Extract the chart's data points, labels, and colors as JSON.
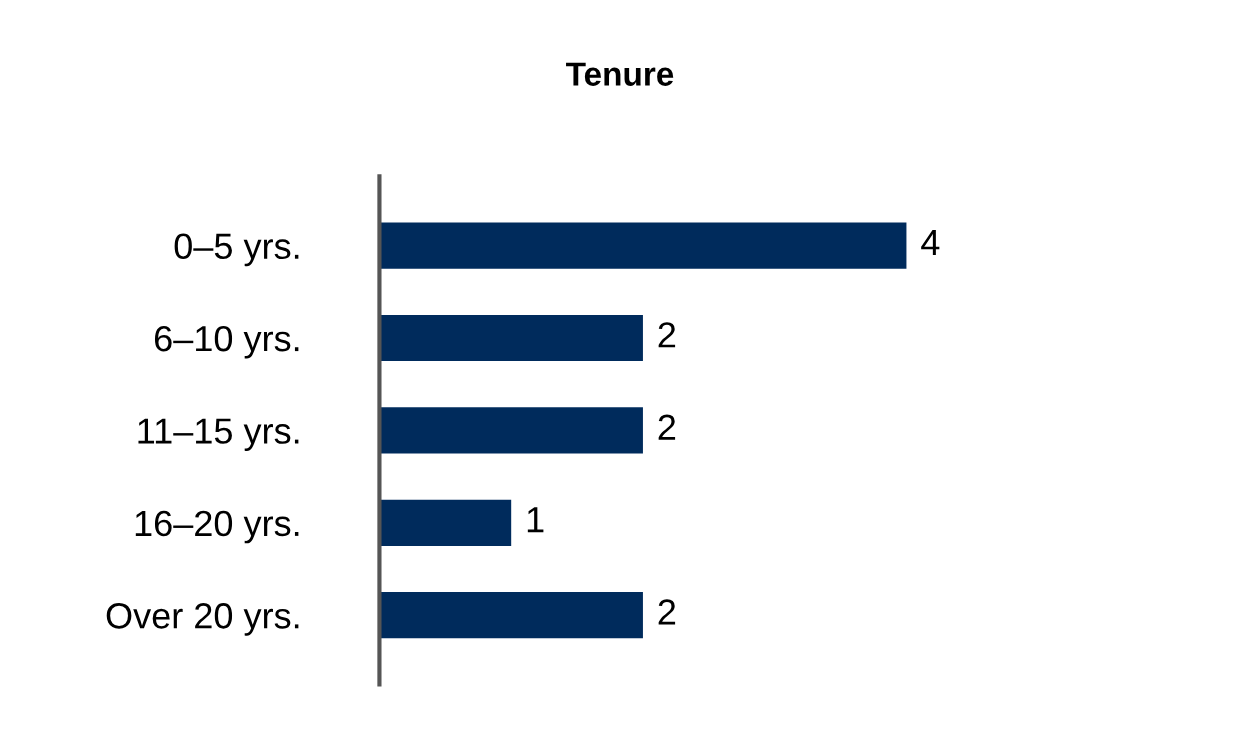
{
  "chart_data": {
    "type": "bar",
    "orientation": "horizontal",
    "title": "Tenure",
    "categories": [
      "0–5 yrs.",
      "6–10 yrs.",
      "11–15 yrs.",
      "16–20 yrs.",
      "Over 20 yrs."
    ],
    "values": [
      4,
      2,
      2,
      1,
      2
    ],
    "color": "#002b5c",
    "data_labels": true,
    "grid": false,
    "legend": false
  }
}
